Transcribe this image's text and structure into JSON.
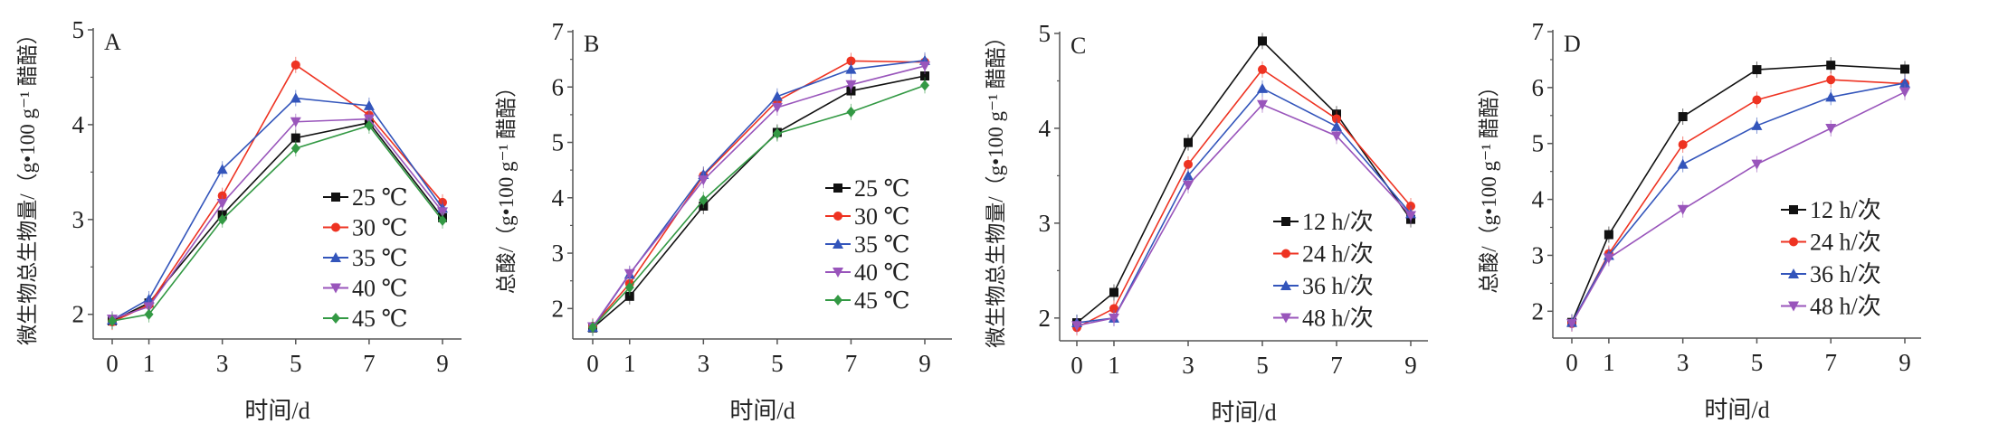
{
  "chart_data": [
    {
      "type": "line",
      "panel_label": "A",
      "xlabel": "时间/d",
      "ylabel": "微生物总生物量/（g•100 g⁻¹ 醋醅）",
      "x": [
        0,
        1,
        3,
        5,
        7,
        9
      ],
      "xticks": [
        "0",
        "1",
        "3",
        "5",
        "7",
        "9"
      ],
      "yticks": [
        "2",
        "3",
        "4",
        "5"
      ],
      "ylim": [
        1.74,
        5.0
      ],
      "legend_position": "right-middle",
      "series": [
        {
          "name": "25 ℃",
          "color": "#111111",
          "marker": "square",
          "values": [
            1.93,
            2.12,
            3.05,
            3.86,
            4.02,
            3.02
          ]
        },
        {
          "name": "30 ℃",
          "color": "#ee3322",
          "marker": "circle",
          "values": [
            1.92,
            2.1,
            3.25,
            4.63,
            4.1,
            3.18
          ]
        },
        {
          "name": "35 ℃",
          "color": "#3355bb",
          "marker": "triangle-up",
          "values": [
            1.94,
            2.16,
            3.53,
            4.28,
            4.2,
            3.12
          ]
        },
        {
          "name": "40 ℃",
          "color": "#9955bb",
          "marker": "triangle-down",
          "values": [
            1.95,
            2.08,
            3.17,
            4.03,
            4.06,
            3.08
          ]
        },
        {
          "name": "45 ℃",
          "color": "#339944",
          "marker": "diamond",
          "values": [
            1.93,
            2.0,
            3.0,
            3.75,
            3.99,
            2.99
          ]
        }
      ]
    },
    {
      "type": "line",
      "panel_label": "B",
      "xlabel": "时间/d",
      "ylabel": "总酸/（g•100 g⁻¹ 醋醅）",
      "x": [
        0,
        1,
        3,
        5,
        7,
        9
      ],
      "xticks": [
        "0",
        "1",
        "3",
        "5",
        "7",
        "9"
      ],
      "yticks": [
        "2",
        "3",
        "4",
        "5",
        "6",
        "7"
      ],
      "ylim": [
        1.45,
        7.0
      ],
      "legend_position": "right-middle",
      "series": [
        {
          "name": "25 ℃",
          "color": "#111111",
          "marker": "square",
          "values": [
            1.65,
            2.22,
            3.85,
            5.18,
            5.93,
            6.2
          ]
        },
        {
          "name": "30 ℃",
          "color": "#ee3322",
          "marker": "circle",
          "values": [
            1.68,
            2.45,
            4.4,
            5.75,
            6.47,
            6.45
          ]
        },
        {
          "name": "35 ℃",
          "color": "#3355bb",
          "marker": "triangle-up",
          "values": [
            1.66,
            2.62,
            4.42,
            5.83,
            6.32,
            6.48
          ]
        },
        {
          "name": "40 ℃",
          "color": "#9955bb",
          "marker": "triangle-down",
          "values": [
            1.67,
            2.63,
            4.32,
            5.63,
            6.04,
            6.38
          ]
        },
        {
          "name": "45 ℃",
          "color": "#339944",
          "marker": "diamond",
          "values": [
            1.66,
            2.38,
            3.96,
            5.16,
            5.55,
            6.03
          ]
        }
      ]
    },
    {
      "type": "line",
      "panel_label": "C",
      "xlabel": "时间/d",
      "ylabel": "微生物总生物量/（g•100 g⁻¹ 醋醅）",
      "x": [
        0,
        1,
        3,
        5,
        7,
        9
      ],
      "xticks": [
        "0",
        "1",
        "3",
        "5",
        "7",
        "9"
      ],
      "yticks": [
        "2",
        "3",
        "4",
        "5"
      ],
      "ylim": [
        1.76,
        5.0
      ],
      "legend_position": "right-middle",
      "series": [
        {
          "name": "12 h/次",
          "color": "#111111",
          "marker": "square",
          "values": [
            1.95,
            2.27,
            3.85,
            4.92,
            4.15,
            3.04
          ]
        },
        {
          "name": "24 h/次",
          "color": "#ee3322",
          "marker": "circle",
          "values": [
            1.9,
            2.1,
            3.62,
            4.62,
            4.1,
            3.18
          ]
        },
        {
          "name": "36 h/次",
          "color": "#3355bb",
          "marker": "triangle-up",
          "values": [
            1.95,
            2.0,
            3.5,
            4.42,
            4.02,
            3.1
          ]
        },
        {
          "name": "48 h/次",
          "color": "#9955bb",
          "marker": "triangle-down",
          "values": [
            1.92,
            2.0,
            3.4,
            4.25,
            3.92,
            3.08
          ]
        }
      ]
    },
    {
      "type": "line",
      "panel_label": "D",
      "xlabel": "时间/d",
      "ylabel": "总酸/（g•100 g⁻¹ 醋醅）",
      "x": [
        0,
        1,
        3,
        5,
        7,
        9
      ],
      "xticks": [
        "0",
        "1",
        "3",
        "5",
        "7",
        "9"
      ],
      "yticks": [
        "2",
        "3",
        "4",
        "5",
        "6",
        "7"
      ],
      "ylim": [
        1.52,
        7.0
      ],
      "legend_position": "right-middle",
      "series": [
        {
          "name": "12 h/次",
          "color": "#111111",
          "marker": "square",
          "values": [
            1.8,
            3.37,
            5.48,
            6.32,
            6.4,
            6.33
          ]
        },
        {
          "name": "24 h/次",
          "color": "#ee3322",
          "marker": "circle",
          "values": [
            1.78,
            3.03,
            4.98,
            5.78,
            6.14,
            6.07
          ]
        },
        {
          "name": "36 h/次",
          "color": "#3355bb",
          "marker": "triangle-up",
          "values": [
            1.8,
            3.0,
            4.63,
            5.32,
            5.83,
            6.08
          ]
        },
        {
          "name": "48 h/次",
          "color": "#9955bb",
          "marker": "triangle-down",
          "values": [
            1.78,
            2.95,
            3.82,
            4.63,
            5.27,
            5.92
          ]
        }
      ]
    }
  ]
}
